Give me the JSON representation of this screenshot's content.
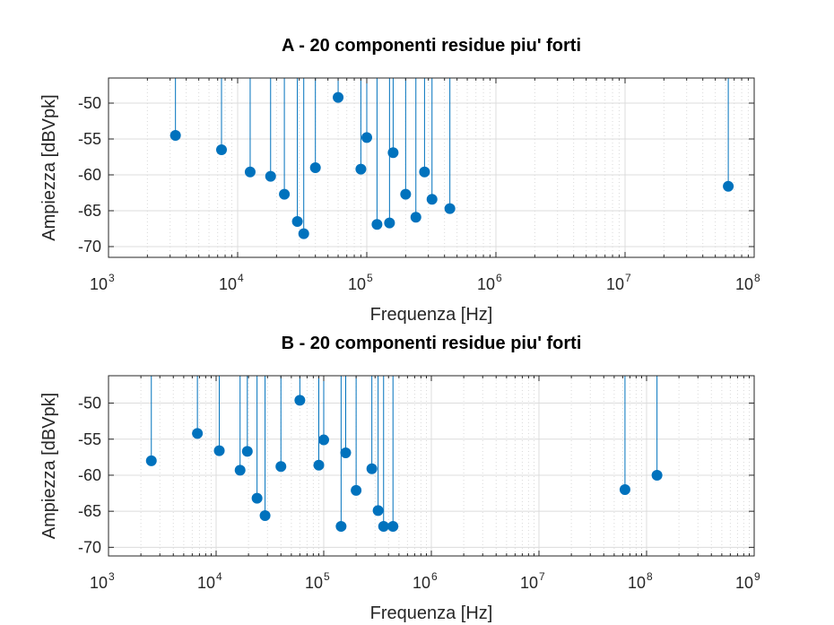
{
  "chart_data": [
    {
      "type": "stem",
      "title": "A - 20 componenti residue piu' forti",
      "xlabel": "Frequenza [Hz]",
      "ylabel": "Ampiezza [dBVpk]",
      "xscale": "log",
      "xlim": [
        1000,
        100000000
      ],
      "ylim": [
        -71.5,
        -46.5
      ],
      "xtick_base": "10",
      "xtick_exponents": [
        "3",
        "4",
        "5",
        "6",
        "7",
        "8"
      ],
      "yticks": [
        "-50",
        "-55",
        "-60",
        "-65",
        "-70"
      ],
      "grid": true,
      "color": "#0072BD",
      "points": [
        {
          "x": 3300,
          "y": -54.5
        },
        {
          "x": 7500,
          "y": -56.5
        },
        {
          "x": 12500,
          "y": -59.6
        },
        {
          "x": 18000,
          "y": -60.2
        },
        {
          "x": 23000,
          "y": -62.7
        },
        {
          "x": 29000,
          "y": -66.5
        },
        {
          "x": 32500,
          "y": -68.2
        },
        {
          "x": 40000,
          "y": -59.0
        },
        {
          "x": 60000,
          "y": -49.2
        },
        {
          "x": 90000,
          "y": -59.2
        },
        {
          "x": 100000,
          "y": -54.8
        },
        {
          "x": 120000,
          "y": -66.9
        },
        {
          "x": 150000,
          "y": -66.7
        },
        {
          "x": 160000,
          "y": -56.9
        },
        {
          "x": 200000,
          "y": -62.7
        },
        {
          "x": 240000,
          "y": -65.9
        },
        {
          "x": 280000,
          "y": -59.6
        },
        {
          "x": 320000,
          "y": -63.4
        },
        {
          "x": 440000,
          "y": -64.7
        },
        {
          "x": 63000000,
          "y": -61.6
        }
      ]
    },
    {
      "type": "stem",
      "title": "B - 20 componenti residue piu' forti",
      "xlabel": "Frequenza [Hz]",
      "ylabel": "Ampiezza [dBVpk]",
      "xscale": "log",
      "xlim": [
        1000,
        1000000000
      ],
      "ylim": [
        -71.2,
        -46.2
      ],
      "xtick_base": "10",
      "xtick_exponents": [
        "3",
        "4",
        "5",
        "6",
        "7",
        "8",
        "9"
      ],
      "yticks": [
        "-50",
        "-55",
        "-60",
        "-65",
        "-70"
      ],
      "grid": true,
      "color": "#0072BD",
      "points": [
        {
          "x": 2500,
          "y": -58.0
        },
        {
          "x": 6700,
          "y": -54.2
        },
        {
          "x": 10700,
          "y": -56.6
        },
        {
          "x": 16700,
          "y": -59.3
        },
        {
          "x": 19500,
          "y": -56.7
        },
        {
          "x": 24000,
          "y": -63.2
        },
        {
          "x": 28500,
          "y": -65.6
        },
        {
          "x": 40000,
          "y": -58.8
        },
        {
          "x": 60000,
          "y": -49.6
        },
        {
          "x": 90000,
          "y": -58.6
        },
        {
          "x": 100000,
          "y": -55.1
        },
        {
          "x": 145000,
          "y": -67.1
        },
        {
          "x": 160000,
          "y": -56.9
        },
        {
          "x": 200000,
          "y": -62.1
        },
        {
          "x": 280000,
          "y": -59.1
        },
        {
          "x": 320000,
          "y": -64.9
        },
        {
          "x": 360000,
          "y": -67.1
        },
        {
          "x": 440000,
          "y": -67.1
        },
        {
          "x": 63000000,
          "y": -62.0
        },
        {
          "x": 125000000,
          "y": -60.0
        }
      ]
    }
  ]
}
